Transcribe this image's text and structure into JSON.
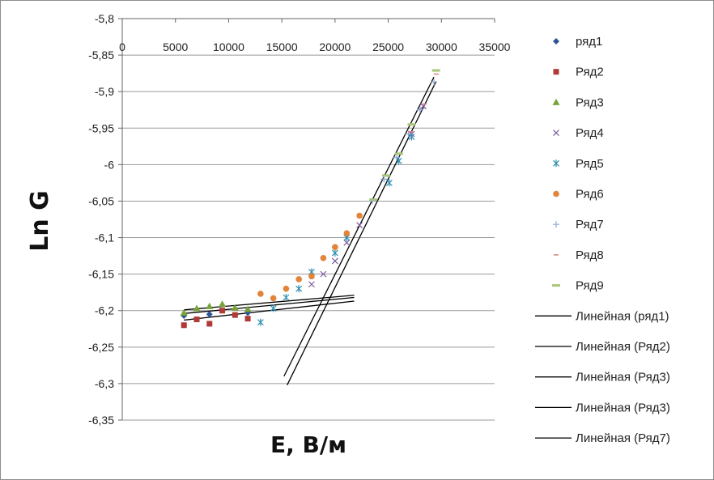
{
  "chart_data": {
    "type": "scatter",
    "xlabel": "E,  В/м",
    "ylabel": "Ln G",
    "xlim": [
      0,
      35000
    ],
    "ylim": [
      -6.35,
      -5.8
    ],
    "x_axis_position": "top",
    "x_ticks": [
      "0",
      "5000",
      "10000",
      "15000",
      "20000",
      "25000",
      "30000",
      "35000"
    ],
    "y_ticks": [
      "-5,8",
      "-5,85",
      "-5,9",
      "-5,95",
      "-6",
      "-6,05",
      "-6,1",
      "-6,15",
      "-6,2",
      "-6,25",
      "-6,3",
      "-6,35"
    ],
    "grid": "horizontal",
    "legend_position": "right",
    "series": [
      {
        "name": "ряд1",
        "marker": "diamond",
        "color": "#2f5597",
        "points": [
          [
            5800,
            -6.207
          ],
          [
            8200,
            -6.205
          ],
          [
            11800,
            -6.203
          ]
        ]
      },
      {
        "name": "Ряд2",
        "marker": "square",
        "color": "#b03a36",
        "points": [
          [
            5800,
            -6.22
          ],
          [
            7000,
            -6.212
          ],
          [
            8200,
            -6.218
          ],
          [
            9400,
            -6.2
          ],
          [
            10600,
            -6.206
          ],
          [
            11800,
            -6.211
          ]
        ]
      },
      {
        "name": "Ряд3",
        "marker": "triangle",
        "color": "#77a33a",
        "points": [
          [
            5800,
            -6.203
          ],
          [
            7000,
            -6.197
          ],
          [
            8200,
            -6.194
          ],
          [
            9400,
            -6.191
          ],
          [
            10600,
            -6.196
          ],
          [
            11800,
            -6.198
          ]
        ]
      },
      {
        "name": "Ряд4",
        "marker": "x",
        "color": "#7a5a9e",
        "points": [
          [
            17800,
            -6.164
          ],
          [
            18900,
            -6.15
          ],
          [
            20000,
            -6.132
          ],
          [
            21100,
            -6.107
          ],
          [
            22300,
            -6.083
          ],
          [
            27200,
            -5.958
          ],
          [
            28300,
            -5.92
          ]
        ]
      },
      {
        "name": "Ряд5",
        "marker": "star",
        "color": "#2e8fb0",
        "points": [
          [
            13000,
            -6.216
          ],
          [
            14200,
            -6.197
          ],
          [
            15400,
            -6.182
          ],
          [
            16600,
            -6.17
          ],
          [
            17800,
            -6.147
          ],
          [
            20000,
            -6.121
          ],
          [
            21100,
            -6.1
          ],
          [
            25100,
            -6.025
          ],
          [
            26000,
            -5.995
          ],
          [
            27200,
            -5.962
          ]
        ]
      },
      {
        "name": "Ряд6",
        "marker": "circle",
        "color": "#e2843a",
        "points": [
          [
            13000,
            -6.177
          ],
          [
            14200,
            -6.183
          ],
          [
            15400,
            -6.17
          ],
          [
            16600,
            -6.157
          ],
          [
            17800,
            -6.153
          ],
          [
            18900,
            -6.128
          ],
          [
            20000,
            -6.113
          ],
          [
            21100,
            -6.094
          ],
          [
            22300,
            -6.07
          ]
        ]
      },
      {
        "name": "Ряд7",
        "marker": "plus",
        "color": "#8ea7d6",
        "points": [
          [
            23500,
            -6.05
          ],
          [
            24600,
            -6.02
          ],
          [
            25800,
            -5.99
          ],
          [
            26900,
            -5.958
          ],
          [
            28000,
            -5.925
          ],
          [
            29300,
            -5.887
          ]
        ]
      },
      {
        "name": "Ряд8",
        "marker": "dash",
        "color": "#d9807a",
        "points": [
          [
            27100,
            -5.955
          ],
          [
            28400,
            -5.917
          ],
          [
            29500,
            -5.876
          ]
        ]
      },
      {
        "name": "Ряд9",
        "marker": "hbar",
        "color": "#a7c67a",
        "points": [
          [
            23600,
            -6.048
          ],
          [
            24800,
            -6.015
          ],
          [
            26000,
            -5.985
          ],
          [
            27200,
            -5.945
          ],
          [
            29500,
            -5.871
          ]
        ]
      }
    ],
    "trendlines": [
      {
        "name": "Линейная (ряд1)",
        "type": "linear",
        "color": "#000000",
        "from": [
          5800,
          -6.199
        ],
        "to": [
          21800,
          -6.179
        ]
      },
      {
        "name": "Линейная (Ряд2)",
        "type": "linear",
        "color": "#000000",
        "from": [
          5800,
          -6.213
        ],
        "to": [
          21800,
          -6.187
        ]
      },
      {
        "name": "Линейная (Ряд3)",
        "type": "linear",
        "color": "#000000",
        "from": [
          5800,
          -6.204
        ],
        "to": [
          21800,
          -6.182
        ]
      },
      {
        "name": "Линейная (Ряд3)",
        "type": "linear",
        "color": "#000000",
        "from": [
          15500,
          -6.302
        ],
        "to": [
          29500,
          -5.886
        ]
      },
      {
        "name": "Линейная (Ряд7)",
        "type": "linear",
        "color": "#000000",
        "from": [
          15200,
          -6.29
        ],
        "to": [
          29300,
          -5.88
        ]
      }
    ]
  }
}
